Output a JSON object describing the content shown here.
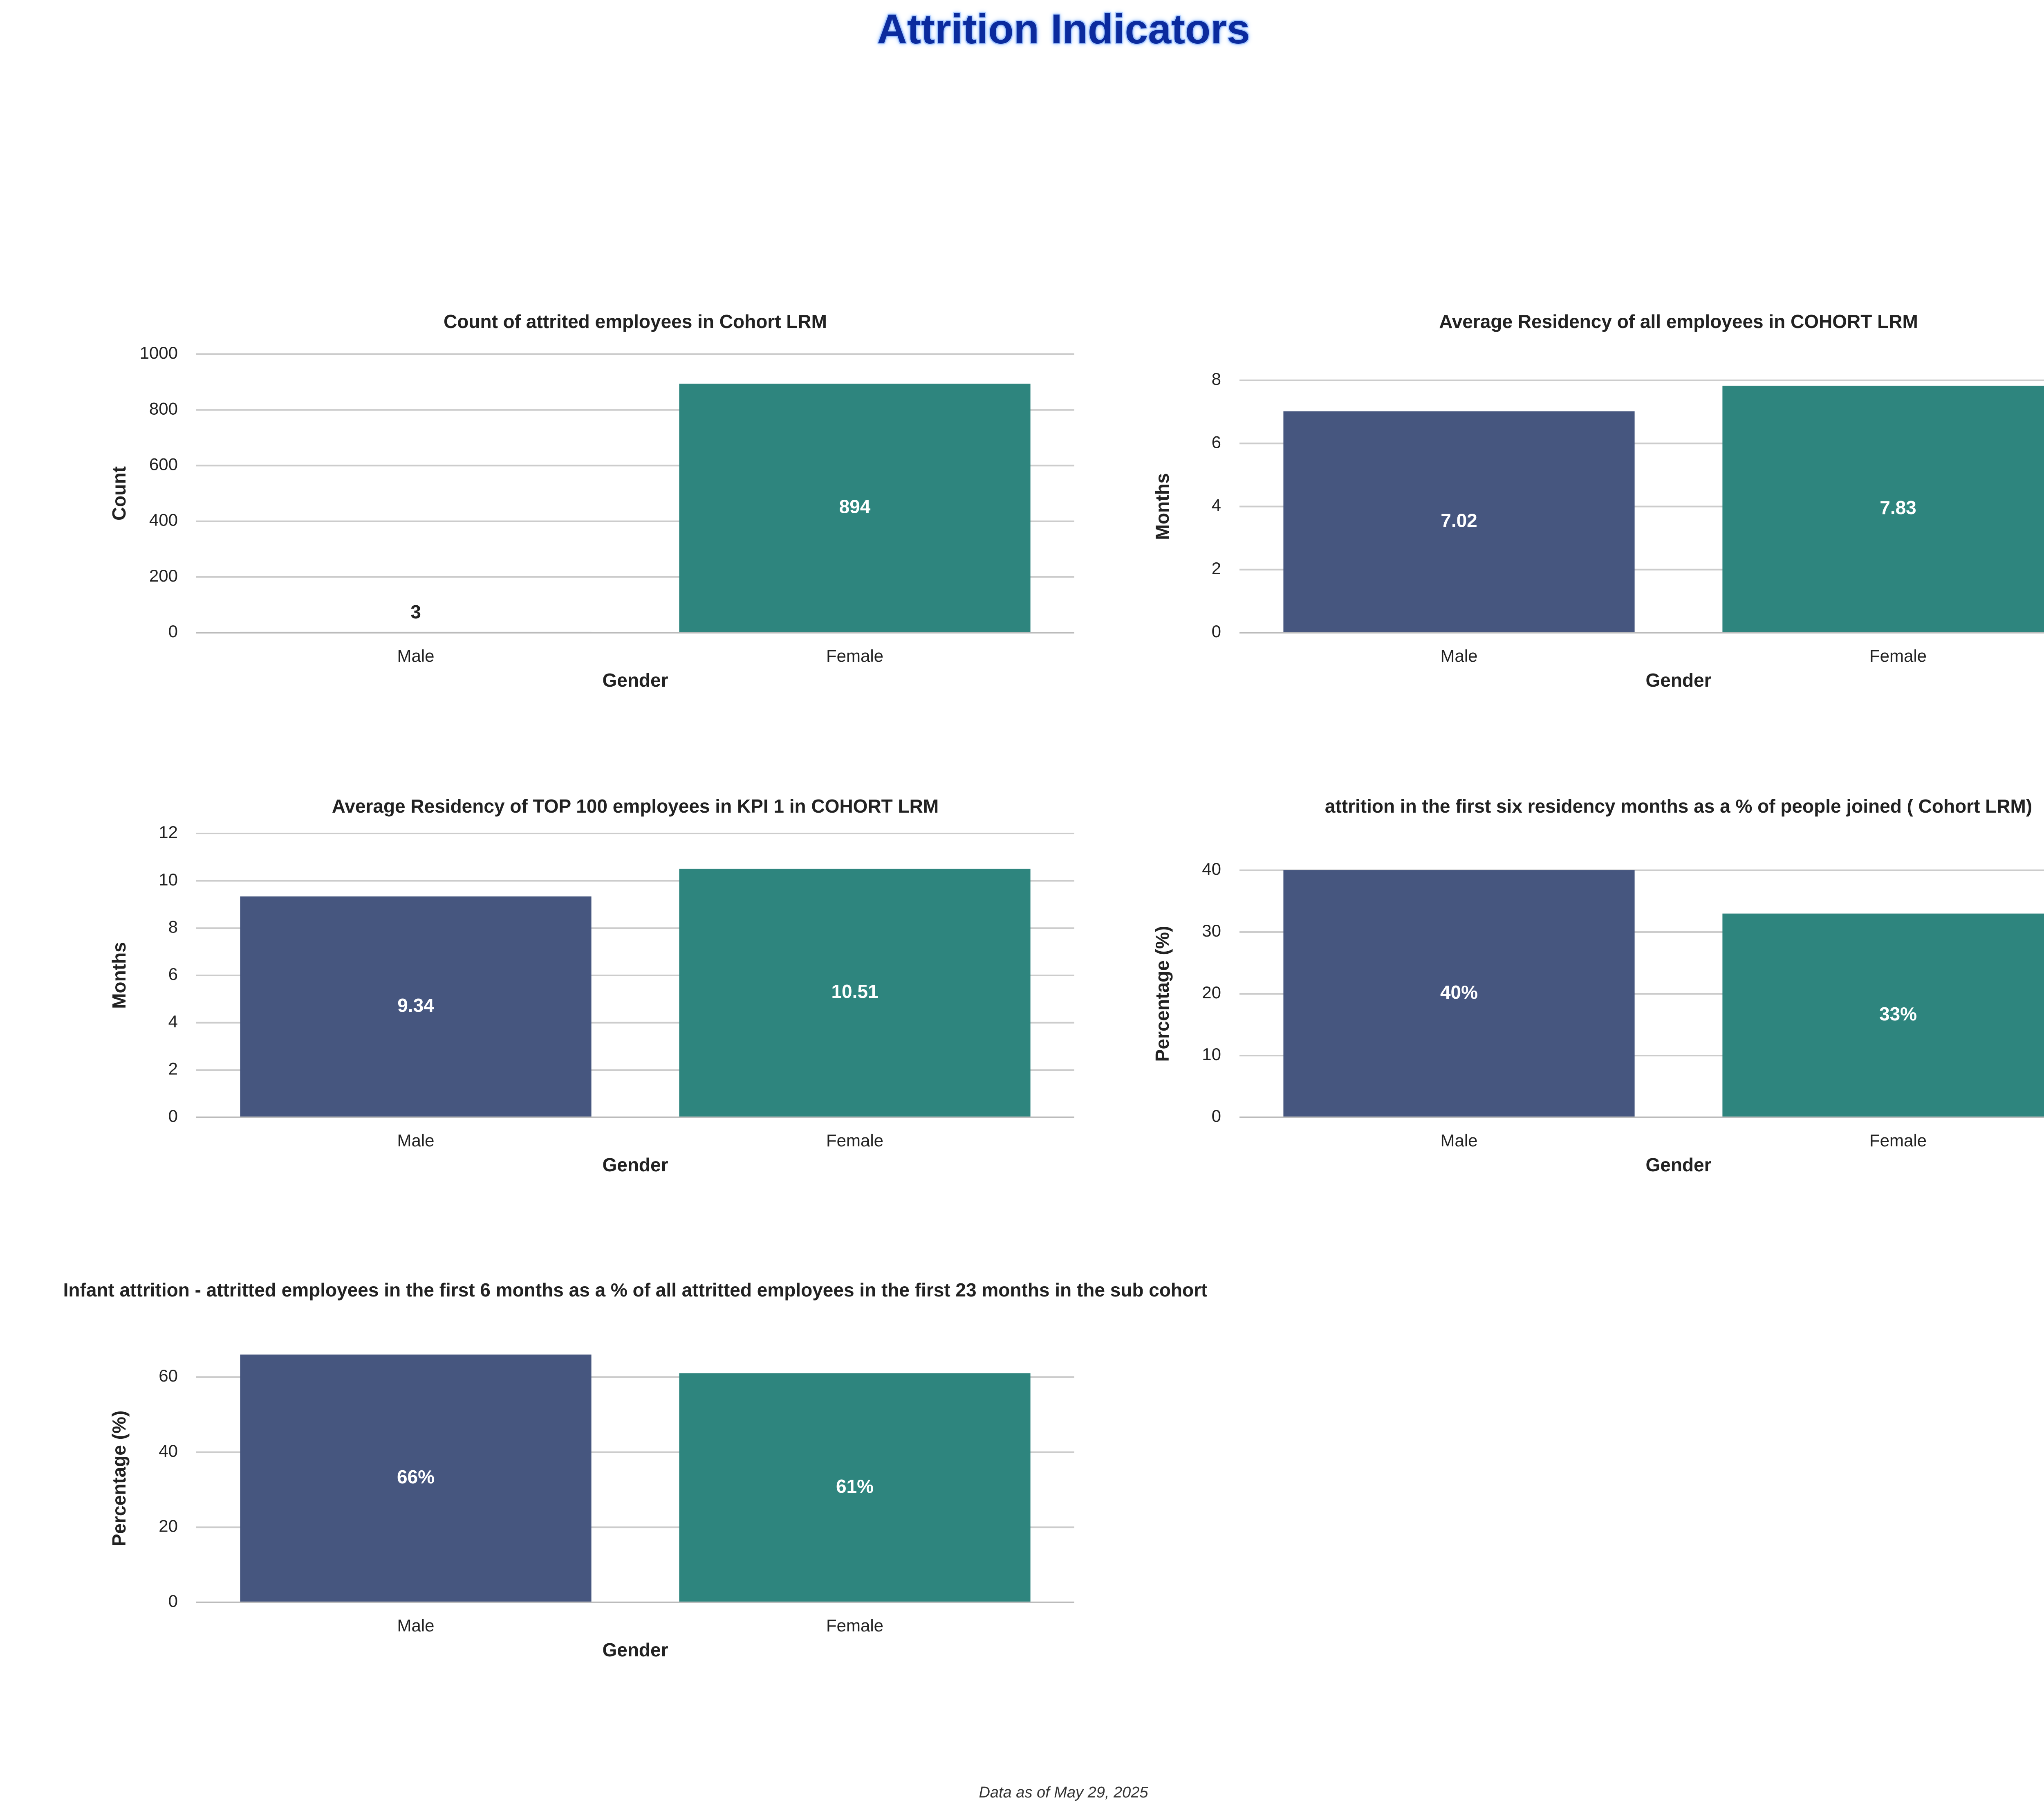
{
  "title": "Attrition Indicators",
  "footer": "Data as of May 29, 2025",
  "colors": {
    "male": "#46567f",
    "female": "#2e857e",
    "title": "#0b2b9e",
    "grid": "#cccccc",
    "text": "#222222"
  },
  "chart_data": [
    {
      "type": "bar",
      "title": "Count of attrited employees in Cohort LRM",
      "xlabel": "Gender",
      "ylabel": "Count",
      "categories": [
        "Male",
        "Female"
      ],
      "values": [
        3,
        894
      ],
      "data_labels": [
        "3",
        "894"
      ],
      "ylim": [
        0,
        1000
      ],
      "yticks": [
        0,
        200,
        400,
        600,
        800,
        1000
      ],
      "grid": true
    },
    {
      "type": "bar",
      "title": "Average Residency of all employees in COHORT LRM",
      "xlabel": "Gender",
      "ylabel": "Months",
      "categories": [
        "Male",
        "Female"
      ],
      "values": [
        7.02,
        7.83
      ],
      "data_labels": [
        "7.02",
        "7.83"
      ],
      "ylim": [
        0,
        8
      ],
      "yticks": [
        0,
        2,
        4,
        6,
        8
      ],
      "grid": true
    },
    {
      "type": "bar",
      "title": "Average Residency of TOP 100 employees in KPI 1 in COHORT LRM",
      "xlabel": "Gender",
      "ylabel": "Months",
      "categories": [
        "Male",
        "Female"
      ],
      "values": [
        9.34,
        10.51
      ],
      "data_labels": [
        "9.34",
        "10.51"
      ],
      "ylim": [
        0,
        12
      ],
      "yticks": [
        0,
        2,
        4,
        6,
        8,
        10,
        12
      ],
      "grid": true
    },
    {
      "type": "bar",
      "title": "attrition in the first six residency months as a % of people joined ( Cohort LRM)",
      "xlabel": "Gender",
      "ylabel": "Percentage (%)",
      "categories": [
        "Male",
        "Female"
      ],
      "values": [
        40,
        33
      ],
      "data_labels": [
        "40%",
        "33%"
      ],
      "ylim": [
        0,
        40
      ],
      "yticks": [
        0,
        10,
        20,
        30,
        40
      ],
      "grid": true
    },
    {
      "type": "bar",
      "title": "Infant attrition - attritted employees in the first 6 months as a % of all attritted employees in the first 23 months in the sub cohort",
      "xlabel": "Gender",
      "ylabel": "Percentage (%)",
      "categories": [
        "Male",
        "Female"
      ],
      "values": [
        66,
        61
      ],
      "data_labels": [
        "66%",
        "61%"
      ],
      "ylim": [
        0,
        66
      ],
      "yticks": [
        0,
        20,
        40,
        60
      ],
      "grid": true
    }
  ]
}
